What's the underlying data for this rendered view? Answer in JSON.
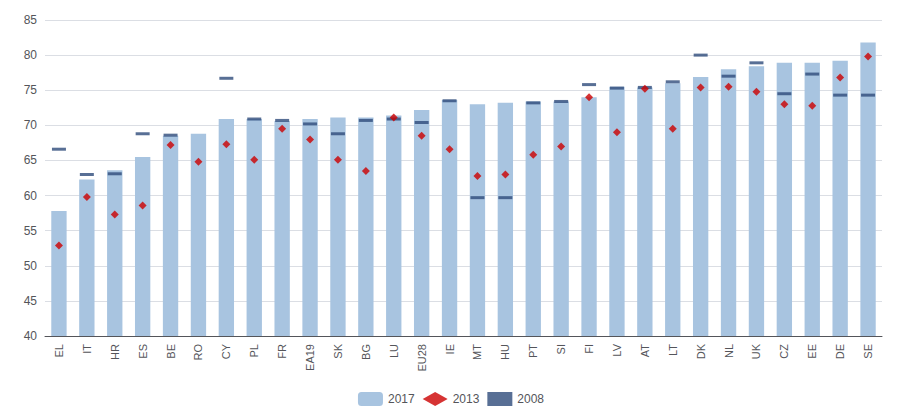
{
  "chart_data": {
    "type": "bar",
    "categories": [
      "EL",
      "IT",
      "HR",
      "ES",
      "BE",
      "RO",
      "CY",
      "PL",
      "FR",
      "EA19",
      "SK",
      "BG",
      "LU",
      "EU28",
      "IE",
      "MT",
      "HU",
      "PT",
      "SI",
      "FI",
      "LV",
      "AT",
      "LT",
      "DK",
      "NL",
      "UK",
      "CZ",
      "EE",
      "DE",
      "SE"
    ],
    "series": [
      {
        "name": "2017",
        "type": "bar",
        "color": "#a8c4e0",
        "values": [
          57.8,
          62.3,
          63.6,
          65.5,
          68.5,
          68.8,
          70.9,
          70.9,
          70.6,
          70.9,
          71.1,
          71.1,
          71.4,
          72.2,
          73.6,
          73.0,
          73.2,
          73.4,
          73.4,
          74.0,
          75.5,
          75.4,
          76.0,
          76.9,
          78.0,
          78.4,
          78.9,
          78.9,
          79.2,
          81.8
        ]
      },
      {
        "name": "2013",
        "type": "scatter",
        "marker": "diamond",
        "color": "#cc0000",
        "values": [
          52.9,
          59.8,
          57.3,
          58.6,
          67.2,
          64.8,
          67.3,
          65.1,
          69.5,
          68.0,
          65.1,
          63.5,
          71.1,
          68.5,
          66.6,
          62.8,
          63.0,
          65.8,
          67.0,
          74.0,
          69.0,
          75.2,
          69.5,
          75.4,
          75.5,
          74.8,
          73.0,
          72.8,
          76.8,
          79.8
        ]
      },
      {
        "name": "2008",
        "type": "scatter",
        "marker": "dash",
        "color": "#2e4b7a",
        "values": [
          66.6,
          63.0,
          63.1,
          68.8,
          68.6,
          null,
          76.7,
          70.9,
          70.7,
          70.2,
          68.8,
          70.7,
          70.9,
          70.4,
          73.5,
          59.7,
          59.7,
          73.2,
          73.4,
          75.8,
          75.3,
          75.4,
          76.2,
          80.0,
          77.0,
          78.9,
          74.5,
          77.3,
          74.3,
          74.3
        ]
      }
    ],
    "ylim": [
      40,
      85
    ],
    "yticks": [
      40,
      45,
      50,
      55,
      60,
      65,
      70,
      75,
      80,
      85
    ],
    "grid": true,
    "legend": "bottom"
  }
}
